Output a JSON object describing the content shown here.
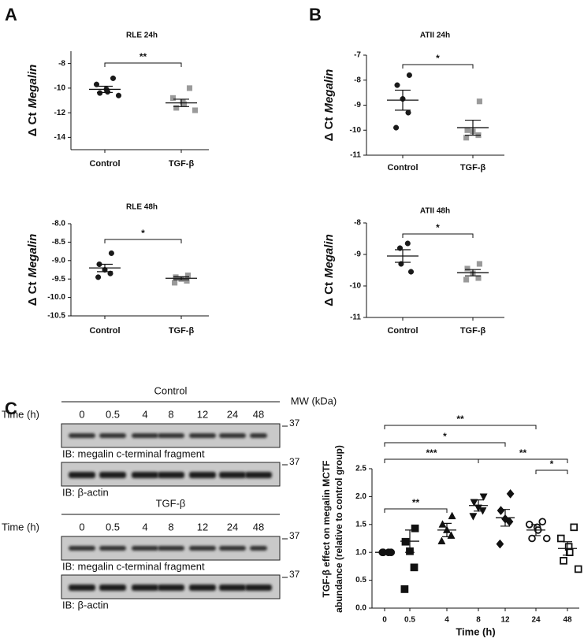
{
  "panel_labels": [
    "A",
    "B",
    "C"
  ],
  "chart_data": [
    {
      "type": "strip",
      "title": "RLE 24h",
      "ylabel_parts": [
        "Δ Ct",
        "Megalin"
      ],
      "categories": [
        "Control",
        "TGF-β"
      ],
      "points": [
        [
          -9.2,
          -9.7,
          -10.1,
          -10.3,
          -10.4,
          -10.6
        ],
        [
          -10.0,
          -10.8,
          -11.1,
          -11.3,
          -11.6,
          -11.8
        ]
      ],
      "mean": [
        -10.1,
        -11.2
      ],
      "sem": [
        0.25,
        0.3
      ],
      "colors": [
        "#1a1a1a",
        "#9a9a9a"
      ],
      "markers": [
        "circle",
        "square"
      ],
      "ylim": [
        -15,
        -7
      ],
      "yticks": [
        -8,
        -10,
        -12,
        -14
      ],
      "annotations": [
        {
          "from": 0,
          "to": 1,
          "label": "**"
        }
      ]
    },
    {
      "type": "strip",
      "title": "ATII 24h",
      "ylabel_parts": [
        "Δ Ct",
        "Megalin"
      ],
      "categories": [
        "Control",
        "TGF-β"
      ],
      "points": [
        [
          -7.8,
          -8.2,
          -8.75,
          -9.3,
          -9.9
        ],
        [
          -8.85,
          -10.0,
          -10.05,
          -10.2,
          -10.3
        ]
      ],
      "mean": [
        -8.8,
        -9.9
      ],
      "sem": [
        0.4,
        0.3
      ],
      "colors": [
        "#1a1a1a",
        "#9a9a9a"
      ],
      "markers": [
        "circle",
        "square"
      ],
      "ylim": [
        -11,
        -7
      ],
      "yticks": [
        -7,
        -8,
        -9,
        -10,
        -11
      ],
      "annotations": [
        {
          "from": 0,
          "to": 1,
          "label": "*"
        }
      ]
    },
    {
      "type": "strip",
      "title": "RLE 48h",
      "ylabel_parts": [
        "Δ Ct",
        "Megalin"
      ],
      "categories": [
        "Control",
        "TGF-β"
      ],
      "points": [
        [
          -8.8,
          -9.1,
          -9.25,
          -9.35,
          -9.45
        ],
        [
          -9.4,
          -9.45,
          -9.5,
          -9.55,
          -9.6
        ]
      ],
      "mean": [
        -9.2,
        -9.48
      ],
      "sem": [
        0.1,
        0.04
      ],
      "colors": [
        "#1a1a1a",
        "#9a9a9a"
      ],
      "markers": [
        "circle",
        "square"
      ],
      "ylim": [
        -10.5,
        -8.0
      ],
      "yticks": [
        {
          "value": -8.0,
          "label": "-8.0"
        },
        -8.5,
        {
          "value": -9.0,
          "label": "-9.0"
        },
        -9.5,
        {
          "value": -10.0,
          "label": "-10.0"
        },
        -10.5
      ],
      "annotations": [
        {
          "from": 0,
          "to": 1,
          "label": "*"
        }
      ]
    },
    {
      "type": "strip",
      "title": "ATII 48h",
      "ylabel_parts": [
        "Δ Ct",
        "Megalin"
      ],
      "categories": [
        "Control",
        "TGF-β"
      ],
      "points": [
        [
          -8.65,
          -8.8,
          -9.3,
          -9.55
        ],
        [
          -9.3,
          -9.45,
          -9.6,
          -9.75,
          -9.8
        ]
      ],
      "mean": [
        -9.05,
        -9.58
      ],
      "sem": [
        0.2,
        0.1
      ],
      "colors": [
        "#1a1a1a",
        "#9a9a9a"
      ],
      "markers": [
        "circle",
        "square"
      ],
      "ylim": [
        -11,
        -8
      ],
      "yticks": [
        -8,
        -9,
        -10,
        -11
      ],
      "annotations": [
        {
          "from": 0,
          "to": 1,
          "label": "*"
        }
      ]
    },
    {
      "type": "strip",
      "ylabel_lines": [
        "TGF-β effect on megalin MCTF",
        "abundance (relative to control group)"
      ],
      "xlabel": "Time (h)",
      "categories": [
        "0",
        "0.5",
        "4",
        "8",
        "12",
        "24",
        "48"
      ],
      "points": [
        [
          1.0,
          1.0,
          1.0,
          1.0
        ],
        [
          1.43,
          1.19,
          1.02,
          0.73,
          0.34
        ],
        [
          1.65,
          1.5,
          1.4,
          1.3,
          1.2
        ],
        [
          2.0,
          1.9,
          1.8,
          1.75,
          1.65
        ],
        [
          2.05,
          1.75,
          1.6,
          1.55,
          1.15
        ],
        [
          1.55,
          1.5,
          1.45,
          1.4,
          1.25,
          1.25
        ],
        [
          1.45,
          1.25,
          1.1,
          1.0,
          0.85,
          0.7
        ]
      ],
      "mean": [
        1.0,
        1.2,
        1.4,
        1.84,
        1.62,
        1.4,
        1.07
      ],
      "sem": [
        0,
        0.2,
        0.12,
        0.1,
        0.15,
        0.1,
        0.12
      ],
      "colors": [
        "#111",
        "#111",
        "#111",
        "#111",
        "#111",
        "#111",
        "#111"
      ],
      "markers": [
        "circle",
        "square",
        "triangle",
        "triangle-down",
        "diamond",
        "circle-open",
        "square-open"
      ],
      "ylim": [
        0,
        2.5
      ],
      "yticks": [
        {
          "value": 0,
          "label": "0.0"
        },
        0.5,
        {
          "value": 1,
          "label": "1.0"
        },
        1.5,
        {
          "value": 2,
          "label": "2.0"
        },
        2.5
      ],
      "annotations": [
        {
          "from": 0,
          "to": 5,
          "label": "**"
        },
        {
          "from": 0,
          "to": 4,
          "label": "*"
        },
        {
          "from": 0,
          "to": 3,
          "label": "***"
        },
        {
          "from": 3,
          "to": 6,
          "label": "**"
        },
        {
          "from": 5,
          "to": 6,
          "label": "*"
        },
        {
          "from": 0,
          "to": 2,
          "label": "**"
        }
      ]
    }
  ],
  "blots": {
    "mw_label": "MW (kDa)",
    "groups": [
      {
        "title": "Control",
        "time_label": "Time (h)",
        "times": [
          "0",
          "0.5",
          "4",
          "8",
          "12",
          "24",
          "48"
        ],
        "probes": [
          {
            "label": "IB: megalin c-terminal fragment",
            "mw": "37"
          },
          {
            "label": "IB: β-actin",
            "mw": "37"
          }
        ]
      },
      {
        "title": "TGF-β",
        "time_label": "Time (h)",
        "times": [
          "0",
          "0.5",
          "4",
          "8",
          "12",
          "24",
          "48"
        ],
        "probes": [
          {
            "label": "IB: megalin c-terminal fragment",
            "mw": "37"
          },
          {
            "label": "IB: β-actin",
            "mw": "37"
          }
        ]
      }
    ]
  }
}
